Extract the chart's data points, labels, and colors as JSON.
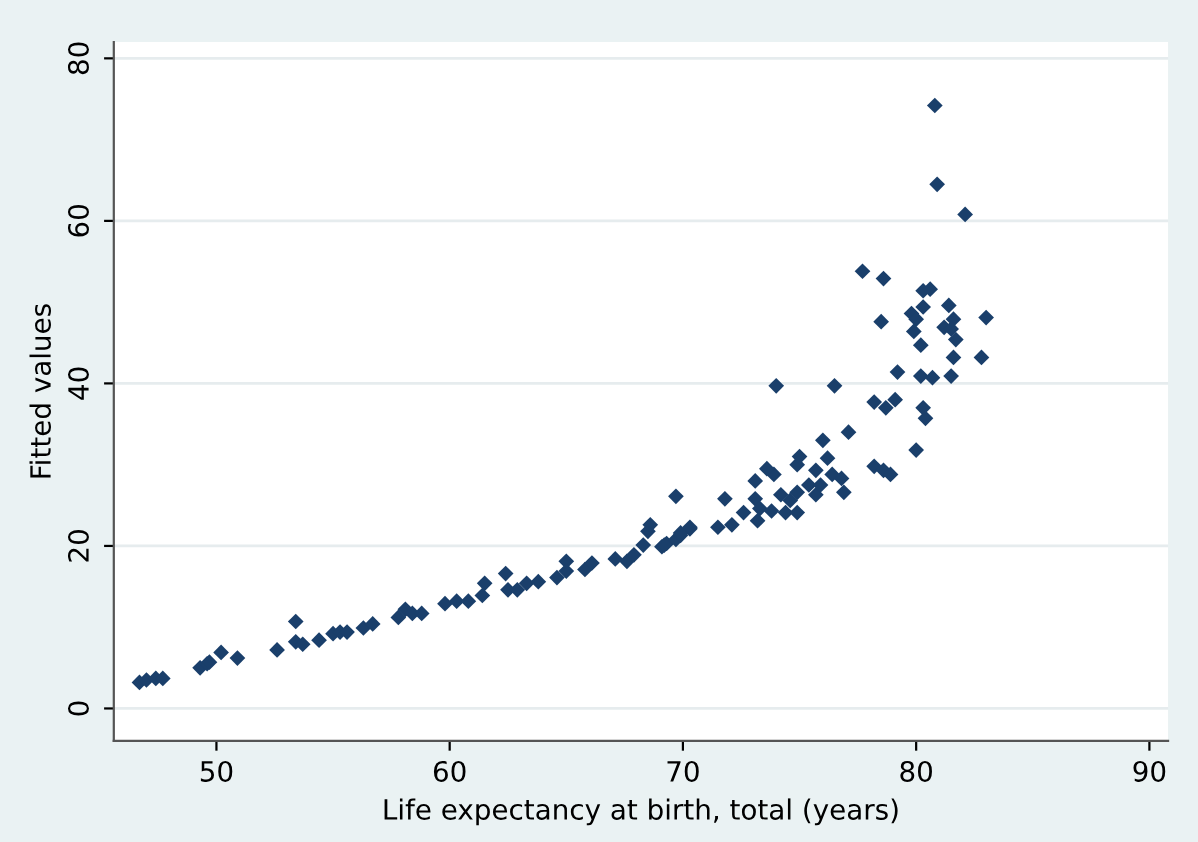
{
  "chart_data": {
    "type": "scatter",
    "xlabel": "Life expectancy at birth, total (years)",
    "ylabel": "Fitted values",
    "xlim": [
      45.6,
      90.8
    ],
    "ylim": [
      -4,
      82
    ],
    "xticks": [
      50,
      60,
      70,
      80,
      90
    ],
    "yticks": [
      0,
      20,
      40,
      60,
      80
    ],
    "grid": "y",
    "marker": "diamond",
    "series": [
      {
        "color": "#1a3f6b",
        "x": [
          46.7,
          47.0,
          47.4,
          47.7,
          49.3,
          49.6,
          49.7,
          50.2,
          50.9,
          52.6,
          53.4,
          53.4,
          53.7,
          54.4,
          55.0,
          55.3,
          55.6,
          56.3,
          56.7,
          57.8,
          58.1,
          58.4,
          58.8,
          59.8,
          60.3,
          60.8,
          61.4,
          61.5,
          62.4,
          62.5,
          62.9,
          63.3,
          63.8,
          64.6,
          65.0,
          65.0,
          65.8,
          66.1,
          67.1,
          67.6,
          67.9,
          68.3,
          68.5,
          68.6,
          69.1,
          69.3,
          69.7,
          69.9,
          70.3,
          69.7,
          69.2,
          69.9,
          70.3,
          71.5,
          72.1,
          71.8,
          72.6,
          73.2,
          73.1,
          73.3,
          73.8,
          74.4,
          74.9,
          74.2,
          74.6,
          74.9,
          75.7,
          75.4,
          75.9,
          76.4,
          76.8,
          76.9,
          75.7,
          73.1,
          73.9,
          73.6,
          74.9,
          75.0,
          76.2,
          76.0,
          77.1,
          74.0,
          76.5,
          78.2,
          78.6,
          78.9,
          80.0,
          78.2,
          78.7,
          79.1,
          80.3,
          80.4,
          79.2,
          80.2,
          80.7,
          81.5,
          81.6,
          82.8,
          80.8,
          80.9,
          82.1,
          77.7,
          78.6,
          80.3,
          80.6,
          80.3,
          81.4,
          79.8,
          80.0,
          78.5,
          81.6,
          83.0,
          79.9,
          81.2,
          81.5,
          81.7,
          80.2
        ],
        "values": [
          3.2,
          3.5,
          3.7,
          3.7,
          5.0,
          5.5,
          5.7,
          6.9,
          6.2,
          7.2,
          10.7,
          8.2,
          7.9,
          8.4,
          9.2,
          9.4,
          9.4,
          9.9,
          10.4,
          11.2,
          12.2,
          11.7,
          11.7,
          12.9,
          13.2,
          13.2,
          13.9,
          15.4,
          16.6,
          14.6,
          14.6,
          15.4,
          15.6,
          16.1,
          18.1,
          16.9,
          17.1,
          17.9,
          18.4,
          18.1,
          18.9,
          20.1,
          21.8,
          22.6,
          19.9,
          20.3,
          20.8,
          21.3,
          22.1,
          26.1,
          20.1,
          21.6,
          22.3,
          22.3,
          22.6,
          25.8,
          24.1,
          23.1,
          25.8,
          24.6,
          24.3,
          24.1,
          24.1,
          26.3,
          25.6,
          26.6,
          26.3,
          27.5,
          27.5,
          28.8,
          28.3,
          26.6,
          29.3,
          28.0,
          28.8,
          29.5,
          30.0,
          31.0,
          30.8,
          33.0,
          34.0,
          39.7,
          39.7,
          29.8,
          29.3,
          28.8,
          31.8,
          37.7,
          37.0,
          38.0,
          37.0,
          35.7,
          41.4,
          40.9,
          40.7,
          40.9,
          43.2,
          43.2,
          74.2,
          64.5,
          60.8,
          53.8,
          52.9,
          51.4,
          51.6,
          49.4,
          49.6,
          48.6,
          47.9,
          47.6,
          47.9,
          48.1,
          46.4,
          46.9,
          46.7,
          45.4,
          44.7
        ]
      }
    ]
  }
}
